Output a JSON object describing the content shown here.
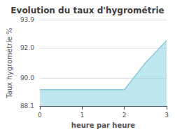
{
  "chart_data": {
    "type": "area",
    "title": "Evolution du taux d'hygrométrie",
    "xlabel": "heure par heure",
    "ylabel": "Taux hygrométrie %",
    "x": [
      0,
      0.5,
      1.0,
      1.5,
      2.0,
      2.5,
      3.0
    ],
    "values": [
      89.2,
      89.2,
      89.2,
      89.2,
      89.2,
      91.0,
      92.5
    ],
    "color": "#7dcfdf",
    "xlim": [
      0,
      3
    ],
    "ylim": [
      88.1,
      93.9
    ],
    "xticks": [
      0,
      1,
      2,
      3
    ],
    "yticks": [
      88.1,
      {
        "value": 90.0,
        "label": "90.0"
      },
      {
        "value": 92.0,
        "label": "92.0"
      },
      93.9
    ],
    "grid": "y"
  }
}
